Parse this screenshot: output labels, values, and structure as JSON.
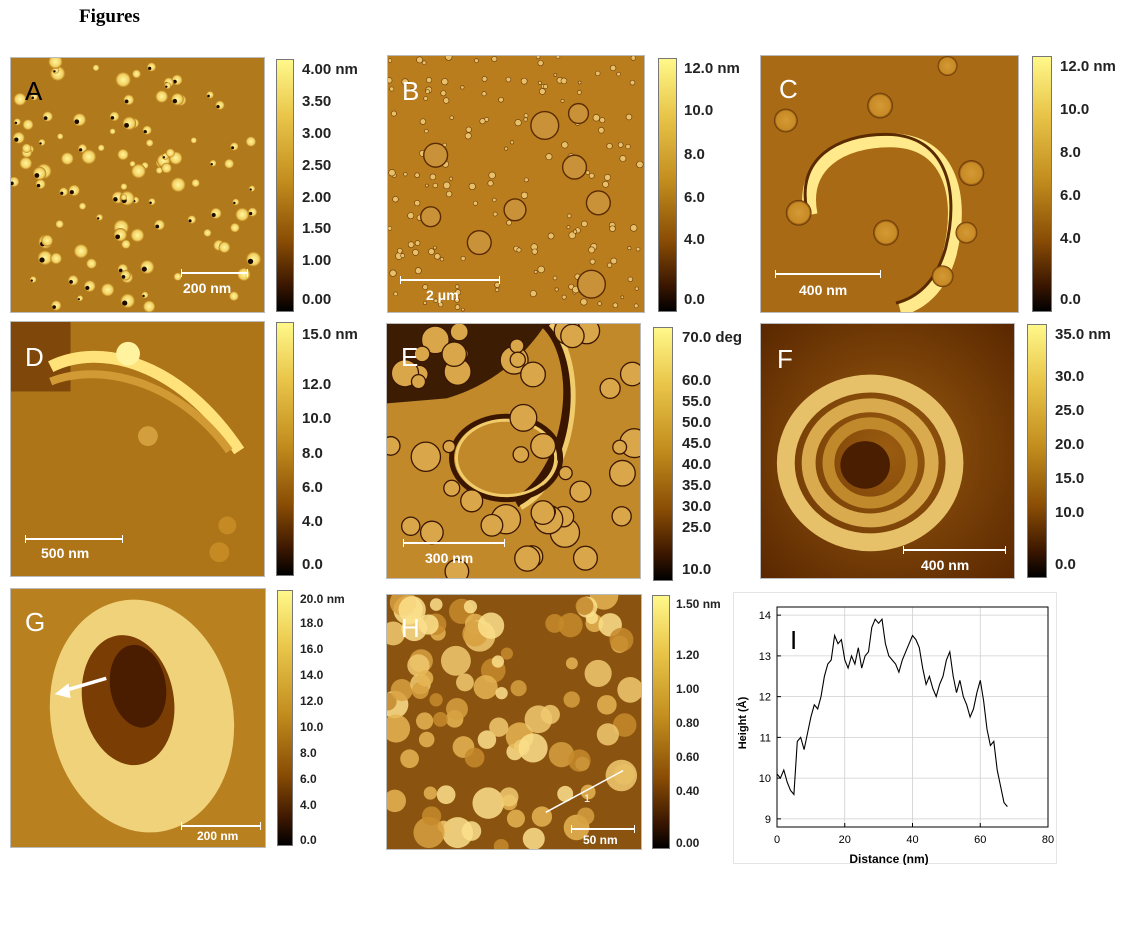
{
  "heading": "Figures",
  "panels": {
    "A": {
      "label": "A",
      "scale": "200 nm",
      "colorbar": [
        "4.00 nm",
        "3.50",
        "3.00",
        "2.50",
        "2.00",
        "1.50",
        "1.00",
        "0.00"
      ]
    },
    "B": {
      "label": "B",
      "scale": "2 μm",
      "colorbar": [
        "12.0 nm",
        "10.0",
        "8.0",
        "6.0",
        "4.0",
        "0.0"
      ]
    },
    "C": {
      "label": "C",
      "scale": "400 nm",
      "colorbar": [
        "12.0 nm",
        "10.0",
        "8.0",
        "6.0",
        "4.0",
        "0.0"
      ]
    },
    "D": {
      "label": "D",
      "scale": "500 nm",
      "colorbar": [
        "15.0 nm",
        "12.0",
        "10.0",
        "8.0",
        "6.0",
        "4.0",
        "0.0"
      ]
    },
    "E": {
      "label": "E",
      "scale": "300 nm",
      "colorbar": [
        "70.0 deg",
        "60.0",
        "55.0",
        "50.0",
        "45.0",
        "40.0",
        "35.0",
        "30.0",
        "25.0",
        "10.0"
      ]
    },
    "F": {
      "label": "F",
      "scale": "400 nm",
      "colorbar": [
        "35.0 nm",
        "30.0",
        "25.0",
        "20.0",
        "15.0",
        "10.0",
        "0.0"
      ]
    },
    "G": {
      "label": "G",
      "scale": "200 nm",
      "colorbar": [
        "20.0 nm",
        "18.0",
        "16.0",
        "14.0",
        "12.0",
        "10.0",
        "8.0",
        "6.0",
        "4.0",
        "0.0"
      ]
    },
    "H": {
      "label": "H",
      "scale": "50 nm",
      "line_label": "1",
      "colorbar": [
        "1.50 nm",
        "1.20",
        "1.00",
        "0.80",
        "0.60",
        "0.40",
        "0.00"
      ]
    }
  },
  "chart_data": {
    "type": "line",
    "panel_label": "I",
    "xlabel": "Distance (nm)",
    "ylabel": "Height (Å)",
    "xlim": [
      0,
      80
    ],
    "ylim": [
      8.8,
      14.2
    ],
    "xticks": [
      "0",
      "20",
      "40",
      "60",
      "80"
    ],
    "yticks": [
      "9",
      "10",
      "11",
      "12",
      "13",
      "14"
    ],
    "grid": true,
    "x": [
      0,
      1,
      2,
      3,
      4,
      5,
      6,
      7,
      8,
      9,
      10,
      11,
      12,
      13,
      14,
      15,
      16,
      17,
      18,
      19,
      20,
      21,
      22,
      23,
      24,
      25,
      26,
      27,
      28,
      29,
      30,
      31,
      32,
      33,
      34,
      35,
      36,
      37,
      38,
      39,
      40,
      41,
      42,
      43,
      44,
      45,
      46,
      47,
      48,
      49,
      50,
      51,
      52,
      53,
      54,
      55,
      56,
      57,
      58,
      59,
      60,
      61,
      62,
      63,
      64,
      65,
      66,
      67,
      68
    ],
    "y": [
      10.1,
      10.0,
      10.2,
      9.9,
      9.7,
      9.6,
      10.9,
      11.0,
      10.7,
      11.1,
      11.5,
      11.8,
      11.7,
      12.0,
      12.5,
      12.8,
      12.9,
      13.5,
      13.3,
      13.4,
      12.9,
      12.7,
      13.0,
      12.8,
      13.2,
      12.7,
      13.0,
      13.1,
      13.7,
      13.9,
      13.8,
      13.9,
      13.3,
      13.0,
      12.9,
      12.8,
      12.6,
      12.9,
      13.1,
      13.3,
      13.5,
      13.4,
      13.2,
      12.7,
      12.3,
      12.5,
      12.2,
      12.0,
      12.3,
      12.5,
      12.9,
      13.1,
      12.5,
      12.1,
      12.4,
      12.0,
      11.8,
      11.5,
      11.7,
      12.1,
      12.4,
      11.9,
      11.2,
      10.8,
      10.9,
      10.2,
      9.8,
      9.4,
      9.3
    ]
  }
}
